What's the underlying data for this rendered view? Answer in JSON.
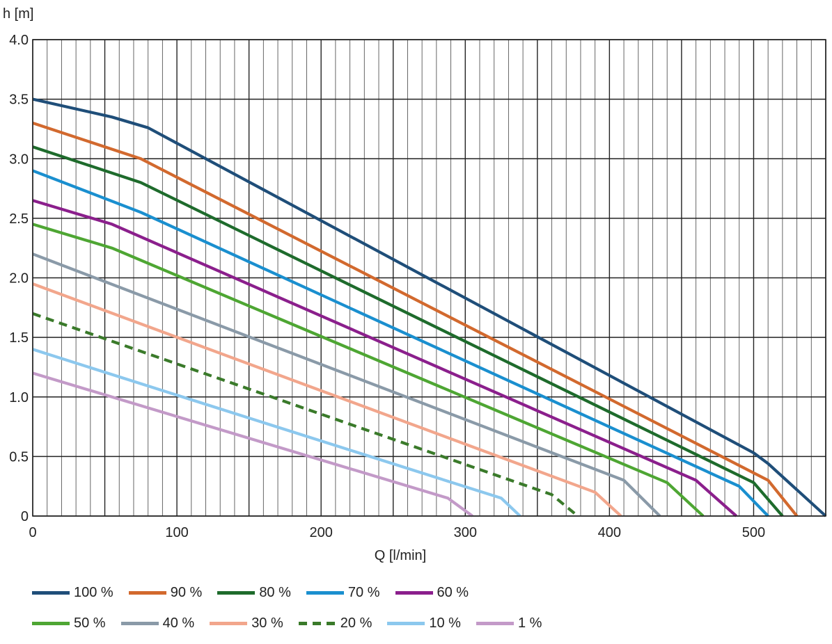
{
  "chart_data": {
    "type": "line",
    "title": "",
    "xlabel": "Q [l/min]",
    "ylabel": "h [m]",
    "xlim": [
      0,
      550
    ],
    "ylim": [
      0,
      4.0
    ],
    "x_ticks": [
      "0",
      "100",
      "200",
      "300",
      "400",
      "500"
    ],
    "y_ticks": [
      "0",
      "0.5",
      "1.0",
      "1.5",
      "2.0",
      "2.5",
      "3.0",
      "3.5",
      "4.0"
    ],
    "grid": true,
    "legend_position": "bottom",
    "series": [
      {
        "name": "100 %",
        "color": "#1f4e79",
        "dashed": false,
        "points": [
          [
            0,
            3.5
          ],
          [
            55,
            3.35
          ],
          [
            80,
            3.26
          ],
          [
            500,
            0.53
          ],
          [
            510,
            0.44
          ],
          [
            550,
            0.0
          ]
        ]
      },
      {
        "name": "90 %",
        "color": "#d2692e",
        "dashed": false,
        "points": [
          [
            0,
            3.3
          ],
          [
            75,
            3.0
          ],
          [
            510,
            0.3
          ],
          [
            530,
            0.0
          ]
        ]
      },
      {
        "name": "80 %",
        "color": "#1e6b2c",
        "dashed": false,
        "points": [
          [
            0,
            3.1
          ],
          [
            75,
            2.8
          ],
          [
            500,
            0.28
          ],
          [
            520,
            0.0
          ]
        ]
      },
      {
        "name": "70 %",
        "color": "#1a8fcf",
        "dashed": false,
        "points": [
          [
            0,
            2.9
          ],
          [
            75,
            2.55
          ],
          [
            490,
            0.25
          ],
          [
            510,
            0.0
          ]
        ]
      },
      {
        "name": "60 %",
        "color": "#8b1f8c",
        "dashed": false,
        "points": [
          [
            0,
            2.65
          ],
          [
            55,
            2.45
          ],
          [
            460,
            0.3
          ],
          [
            488,
            0.0
          ]
        ]
      },
      {
        "name": "50 %",
        "color": "#4ea633",
        "dashed": false,
        "points": [
          [
            0,
            2.45
          ],
          [
            55,
            2.25
          ],
          [
            440,
            0.28
          ],
          [
            465,
            0.0
          ]
        ]
      },
      {
        "name": "40 %",
        "color": "#8a9aa8",
        "dashed": false,
        "points": [
          [
            0,
            2.2
          ],
          [
            410,
            0.3
          ],
          [
            435,
            0.0
          ]
        ]
      },
      {
        "name": "30 %",
        "color": "#f2a68c",
        "dashed": false,
        "points": [
          [
            0,
            1.95
          ],
          [
            390,
            0.2
          ],
          [
            408,
            0.0
          ]
        ]
      },
      {
        "name": "20 %",
        "color": "#3a7a2a",
        "dashed": true,
        "points": [
          [
            0,
            1.7
          ],
          [
            360,
            0.18
          ],
          [
            378,
            0.0
          ]
        ]
      },
      {
        "name": "10 %",
        "color": "#8cc8ee",
        "dashed": false,
        "points": [
          [
            0,
            1.4
          ],
          [
            325,
            0.15
          ],
          [
            338,
            0.0
          ]
        ]
      },
      {
        "name": "1 %",
        "color": "#c39ac8",
        "dashed": false,
        "points": [
          [
            0,
            1.2
          ],
          [
            288,
            0.15
          ],
          [
            305,
            0.0
          ]
        ]
      }
    ]
  }
}
